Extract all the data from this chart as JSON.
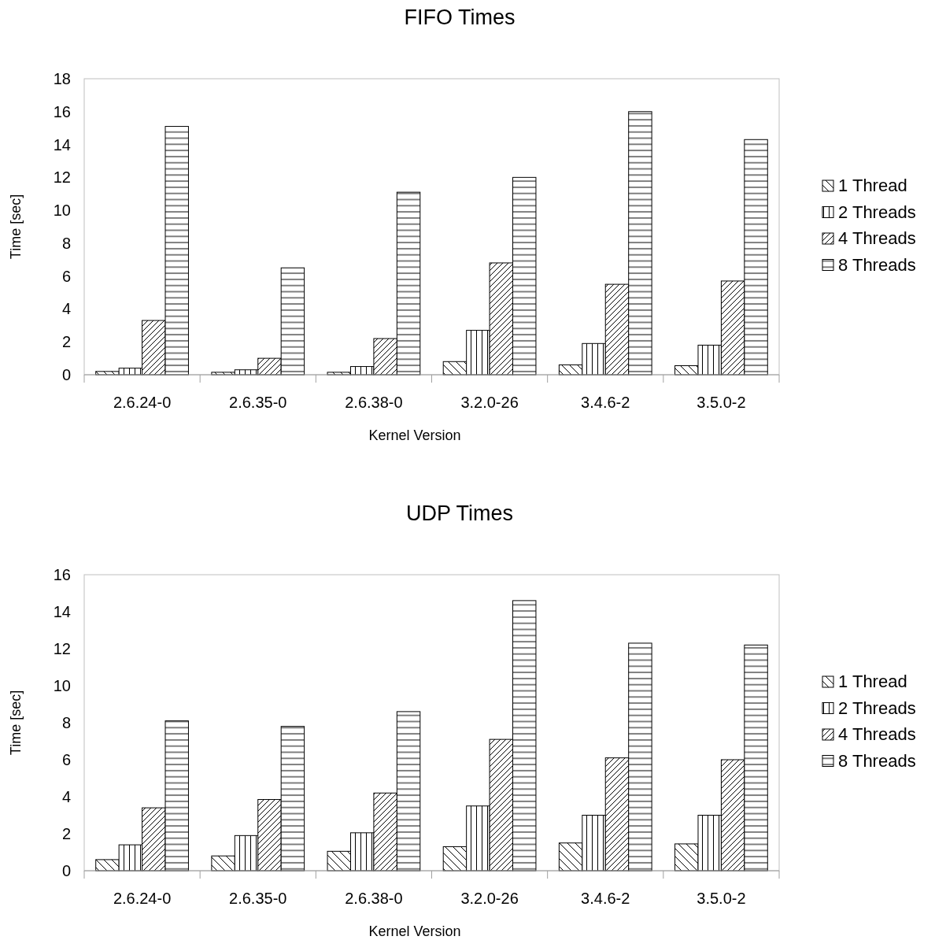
{
  "chart_data": [
    {
      "type": "bar",
      "title": "FIFO Times",
      "xlabel": "Kernel Version",
      "ylabel": "Time [sec]",
      "categories": [
        "2.6.24-0",
        "2.6.35-0",
        "2.6.38-0",
        "3.2.0-26",
        "3.4.6-2",
        "3.5.0-2"
      ],
      "series": [
        {
          "name": "1 Thread",
          "color": "#000000",
          "values": [
            0.2,
            0.15,
            0.15,
            0.8,
            0.6,
            0.55
          ]
        },
        {
          "name": "2 Threads",
          "color": "#000000",
          "values": [
            0.4,
            0.3,
            0.5,
            2.7,
            1.9,
            1.8
          ]
        },
        {
          "name": "4 Threads",
          "color": "#000000",
          "values": [
            3.3,
            1.0,
            2.2,
            6.8,
            5.5,
            5.7
          ]
        },
        {
          "name": "8 Threads",
          "color": "#000000",
          "values": [
            15.1,
            6.5,
            11.1,
            12.0,
            16.0,
            14.3
          ]
        }
      ],
      "ylim": [
        0,
        18
      ],
      "yticks": [
        0,
        2,
        4,
        6,
        8,
        10,
        12,
        14,
        16,
        18
      ],
      "grid": false,
      "legend": "right"
    },
    {
      "type": "bar",
      "title": "UDP Times",
      "xlabel": "Kernel Version",
      "ylabel": "Time [sec]",
      "categories": [
        "2.6.24-0",
        "2.6.35-0",
        "2.6.38-0",
        "3.2.0-26",
        "3.4.6-2",
        "3.5.0-2"
      ],
      "series": [
        {
          "name": "1 Thread",
          "color": "#000000",
          "values": [
            0.6,
            0.8,
            1.05,
            1.3,
            1.5,
            1.45
          ]
        },
        {
          "name": "2 Threads",
          "color": "#000000",
          "values": [
            1.4,
            1.9,
            2.05,
            3.5,
            3.0,
            3.0
          ]
        },
        {
          "name": "4 Threads",
          "color": "#000000",
          "values": [
            3.4,
            3.85,
            4.2,
            7.1,
            6.1,
            6.0
          ]
        },
        {
          "name": "8 Threads",
          "color": "#000000",
          "values": [
            8.1,
            7.8,
            8.6,
            14.6,
            12.3,
            12.2
          ]
        }
      ],
      "ylim": [
        0,
        16
      ],
      "yticks": [
        0,
        2,
        4,
        6,
        8,
        10,
        12,
        14,
        16
      ],
      "grid": false,
      "legend": "right"
    }
  ]
}
